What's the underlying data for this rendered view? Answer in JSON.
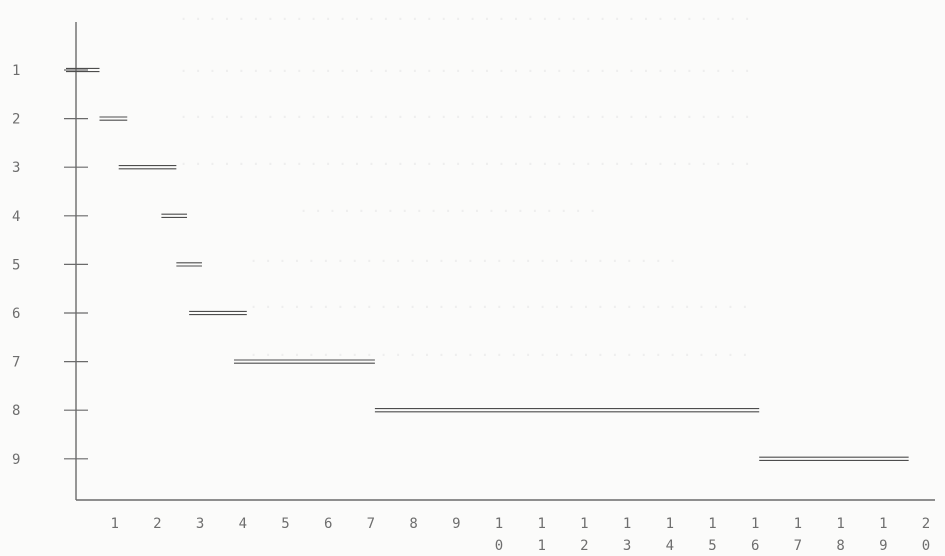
{
  "chart_data": {
    "type": "bar",
    "orientation": "horizontal-segments",
    "title": "",
    "xlabel": "",
    "ylabel": "",
    "grid": false,
    "legend": "none",
    "color": "#4d4d4d",
    "x_ticks": [
      {
        "top": "1",
        "bottom": ""
      },
      {
        "top": "2",
        "bottom": ""
      },
      {
        "top": "3",
        "bottom": ""
      },
      {
        "top": "4",
        "bottom": ""
      },
      {
        "top": "5",
        "bottom": ""
      },
      {
        "top": "6",
        "bottom": ""
      },
      {
        "top": "7",
        "bottom": ""
      },
      {
        "top": "8",
        "bottom": ""
      },
      {
        "top": "9",
        "bottom": ""
      },
      {
        "top": "1",
        "bottom": "0"
      },
      {
        "top": "1",
        "bottom": "1"
      },
      {
        "top": "1",
        "bottom": "2"
      },
      {
        "top": "1",
        "bottom": "3"
      },
      {
        "top": "1",
        "bottom": "4"
      },
      {
        "top": "1",
        "bottom": "5"
      },
      {
        "top": "1",
        "bottom": "6"
      },
      {
        "top": "1",
        "bottom": "7"
      },
      {
        "top": "1",
        "bottom": "8"
      },
      {
        "top": "1",
        "bottom": "9"
      },
      {
        "top": "2",
        "bottom": "0"
      }
    ],
    "y_ticks": [
      "1",
      "2",
      "3",
      "4",
      "5",
      "6",
      "7",
      "8",
      "9"
    ],
    "xlim": [
      0,
      20
    ],
    "ylim": [
      0.2,
      9.9
    ],
    "segments": [
      {
        "row": 1,
        "start": 0,
        "end": 0.55
      },
      {
        "row": 2,
        "start": 0.55,
        "end": 1.2
      },
      {
        "row": 3,
        "start": 1.0,
        "end": 2.35
      },
      {
        "row": 4,
        "start": 2.0,
        "end": 2.6
      },
      {
        "row": 5,
        "start": 2.35,
        "end": 2.95
      },
      {
        "row": 6,
        "start": 2.65,
        "end": 4.0
      },
      {
        "row": 7,
        "start": 3.7,
        "end": 7.0
      },
      {
        "row": 8,
        "start": 7.0,
        "end": 16.0
      },
      {
        "row": 9,
        "start": 16.0,
        "end": 19.5
      }
    ]
  }
}
